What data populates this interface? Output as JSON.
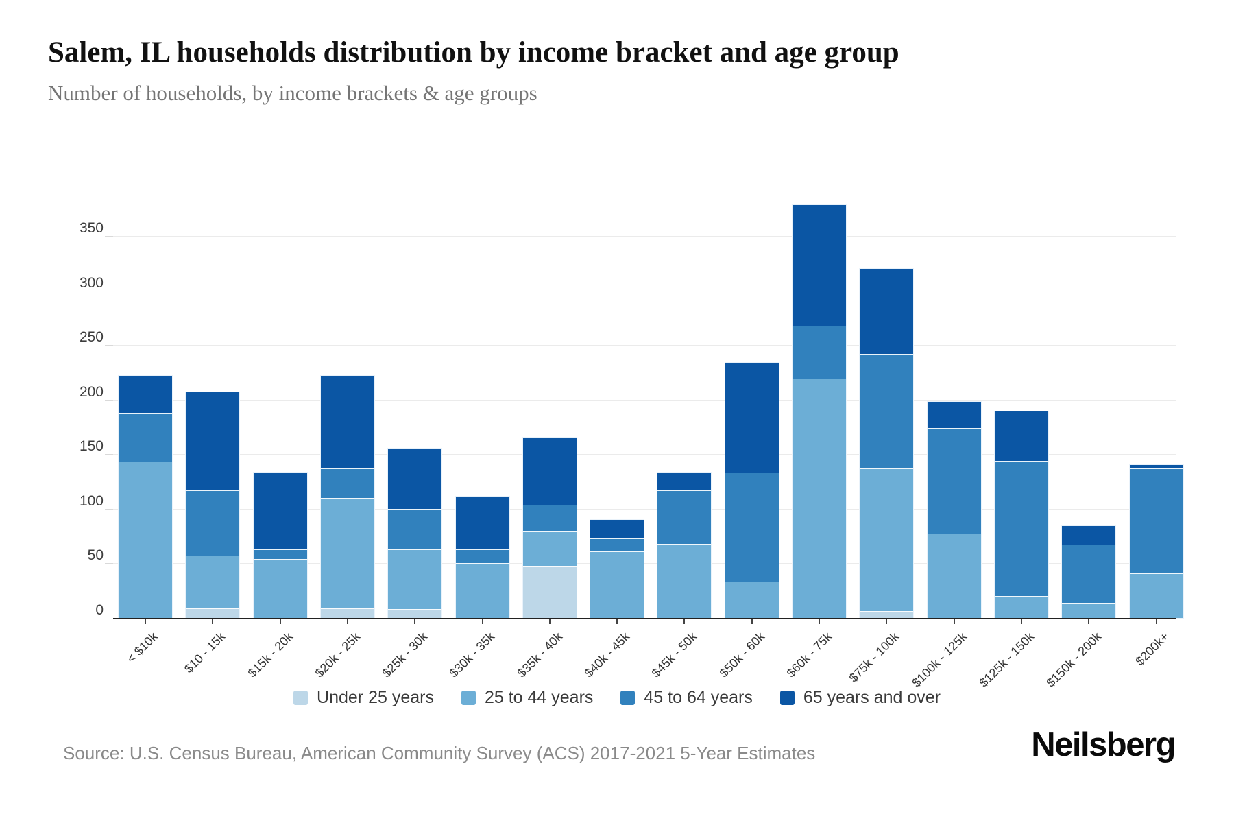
{
  "header": {
    "title": "Salem, IL households distribution by income bracket and age group",
    "subtitle": "Number of households, by income brackets & age groups"
  },
  "source_note": "Source: U.S. Census Bureau, American Community Survey (ACS) 2017-2021 5-Year Estimates",
  "brand": "Neilsberg",
  "chart_data": {
    "type": "bar",
    "stacked": true,
    "title": "Salem, IL households distribution by income bracket and age group",
    "xlabel": "",
    "ylabel": "Number of households",
    "ylim": [
      0,
      410
    ],
    "yticks": [
      0,
      50,
      100,
      150,
      200,
      250,
      300,
      350
    ],
    "grid": true,
    "legend_position": "bottom",
    "categories": [
      "< $10k",
      "$10 - 15k",
      "$15k - 20k",
      "$20k - 25k",
      "$25k - 30k",
      "$30k - 35k",
      "$35k - 40k",
      "$40k - 45k",
      "$45k - 50k",
      "$50k - 60k",
      "$60k - 75k",
      "$75k - 100k",
      "$100k - 125k",
      "$125k - 150k",
      "$150k - 200k",
      "$200k+"
    ],
    "series": [
      {
        "name": "Under 25 years",
        "color": "#bdd7e8",
        "values": [
          0,
          9,
          0,
          9,
          8,
          0,
          47,
          0,
          0,
          0,
          0,
          6,
          0,
          0,
          0,
          0
        ]
      },
      {
        "name": "25 to 44 years",
        "color": "#6caed6",
        "values": [
          143,
          48,
          54,
          101,
          55,
          50,
          33,
          61,
          68,
          33,
          219,
          131,
          77,
          20,
          14,
          41
        ]
      },
      {
        "name": "45 to 64 years",
        "color": "#3181bd",
        "values": [
          45,
          60,
          9,
          27,
          37,
          13,
          24,
          12,
          49,
          100,
          49,
          105,
          97,
          124,
          53,
          96
        ]
      },
      {
        "name": "65 years and over",
        "color": "#0b56a4",
        "values": [
          34,
          90,
          70,
          85,
          55,
          48,
          61,
          17,
          16,
          101,
          110,
          78,
          24,
          45,
          17,
          3
        ]
      }
    ],
    "totals": [
      222,
      207,
      133,
      222,
      155,
      111,
      165,
      90,
      133,
      234,
      378,
      320,
      198,
      189,
      84,
      140
    ]
  }
}
